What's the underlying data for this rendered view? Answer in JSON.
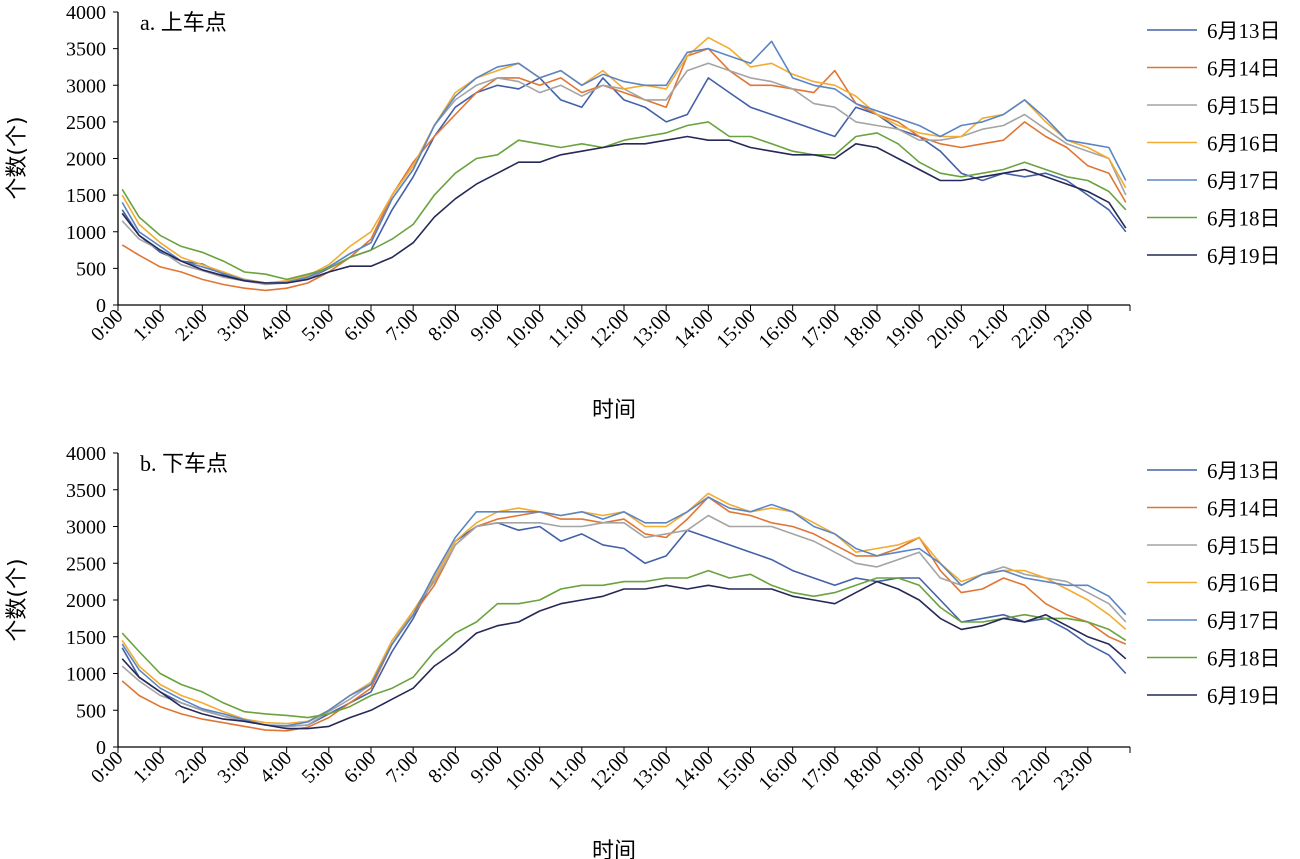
{
  "colors": {
    "6月13日": "#4361a8",
    "6月14日": "#e07634",
    "6月15日": "#a4a4a4",
    "6月16日": "#f2ac32",
    "6月17日": "#5b86c4",
    "6月18日": "#6aa33e",
    "6月19日": "#262957"
  },
  "chart_data": [
    {
      "type": "line",
      "title": "a. 上车点",
      "xlabel": "时间",
      "ylabel": "个数(个)",
      "ylim": [
        0,
        4000
      ],
      "yticks": [
        "0",
        "500",
        "1000",
        "1500",
        "2000",
        "2500",
        "3000",
        "3500",
        "4000"
      ],
      "xticks": [
        "0:00",
        "1:00",
        "2:00",
        "3:00",
        "4:00",
        "5:00",
        "6:00",
        "7:00",
        "8:00",
        "9:00",
        "10:00",
        "11:00",
        "12:00",
        "13:00",
        "14:00",
        "15:00",
        "16:00",
        "17:00",
        "18:00",
        "19:00",
        "20:00",
        "21:00",
        "22:00",
        "23:00"
      ],
      "x_hours": [
        0.1,
        0.5,
        1,
        1.5,
        2,
        2.5,
        3,
        3.5,
        4,
        4.5,
        5,
        5.5,
        6,
        6.5,
        7,
        7.5,
        8,
        8.5,
        9,
        9.5,
        10,
        10.5,
        11,
        11.5,
        12,
        12.5,
        13,
        13.5,
        14,
        14.5,
        15,
        15.5,
        16,
        16.5,
        17,
        17.5,
        18,
        18.5,
        19,
        19.5,
        20,
        20.5,
        21,
        21.5,
        22,
        22.5,
        23,
        23.5,
        23.9
      ],
      "series": [
        {
          "name": "6月13日",
          "values": [
            1300,
            950,
            720,
            600,
            560,
            420,
            350,
            300,
            320,
            360,
            500,
            650,
            750,
            1300,
            1750,
            2300,
            2700,
            2900,
            3000,
            2950,
            3100,
            2800,
            2700,
            3100,
            2800,
            2700,
            2500,
            2600,
            3100,
            2900,
            2700,
            2600,
            2500,
            2400,
            2300,
            2700,
            2600,
            2400,
            2300,
            2100,
            1800,
            1700,
            1800,
            1750,
            1800,
            1700,
            1500,
            1300,
            1000
          ]
        },
        {
          "name": "6月14日",
          "values": [
            820,
            680,
            520,
            450,
            350,
            280,
            230,
            200,
            230,
            300,
            450,
            650,
            900,
            1500,
            1950,
            2300,
            2600,
            2900,
            3100,
            3100,
            3000,
            3100,
            2900,
            3000,
            2900,
            2800,
            2700,
            3400,
            3500,
            3200,
            3000,
            3000,
            2950,
            2900,
            3200,
            2750,
            2600,
            2500,
            2300,
            2200,
            2150,
            2200,
            2250,
            2500,
            2300,
            2150,
            1900,
            1800,
            1400
          ]
        },
        {
          "name": "6月15日",
          "values": [
            1150,
            900,
            750,
            550,
            470,
            380,
            330,
            280,
            300,
            360,
            520,
            700,
            850,
            1450,
            1850,
            2450,
            2800,
            3000,
            3100,
            3050,
            2900,
            3000,
            2850,
            3000,
            2950,
            2800,
            2800,
            3200,
            3300,
            3200,
            3100,
            3050,
            2950,
            2750,
            2700,
            2500,
            2450,
            2400,
            2250,
            2250,
            2300,
            2400,
            2450,
            2600,
            2400,
            2200,
            2100,
            2000,
            1500
          ]
        },
        {
          "name": "6月16日",
          "values": [
            1500,
            1100,
            850,
            650,
            550,
            450,
            350,
            300,
            330,
            400,
            550,
            800,
            1000,
            1500,
            1900,
            2450,
            2900,
            3100,
            3200,
            3300,
            3100,
            3200,
            3000,
            3200,
            2950,
            3000,
            2950,
            3400,
            3650,
            3500,
            3250,
            3300,
            3150,
            3050,
            3000,
            2850,
            2600,
            2450,
            2350,
            2300,
            2300,
            2550,
            2600,
            2800,
            2500,
            2250,
            2150,
            2000,
            1600
          ]
        },
        {
          "name": "6月17日",
          "values": [
            1400,
            1000,
            800,
            600,
            520,
            430,
            340,
            300,
            310,
            380,
            520,
            700,
            850,
            1450,
            1850,
            2450,
            2850,
            3100,
            3250,
            3300,
            3100,
            3200,
            3000,
            3150,
            3050,
            3000,
            3000,
            3450,
            3500,
            3400,
            3300,
            3600,
            3100,
            3000,
            2950,
            2750,
            2650,
            2550,
            2450,
            2300,
            2450,
            2500,
            2600,
            2800,
            2550,
            2250,
            2200,
            2150,
            1700
          ]
        },
        {
          "name": "6月18日",
          "values": [
            1580,
            1200,
            950,
            800,
            720,
            600,
            450,
            420,
            350,
            420,
            500,
            650,
            750,
            900,
            1100,
            1500,
            1800,
            2000,
            2050,
            2250,
            2200,
            2150,
            2200,
            2150,
            2250,
            2300,
            2350,
            2450,
            2500,
            2300,
            2300,
            2200,
            2100,
            2050,
            2050,
            2300,
            2350,
            2200,
            1950,
            1800,
            1750,
            1800,
            1850,
            1950,
            1850,
            1750,
            1700,
            1550,
            1300
          ]
        },
        {
          "name": "6月19日",
          "values": [
            1250,
            950,
            750,
            600,
            480,
            400,
            330,
            300,
            300,
            350,
            450,
            530,
            530,
            650,
            850,
            1200,
            1450,
            1650,
            1800,
            1950,
            1950,
            2050,
            2100,
            2150,
            2200,
            2200,
            2250,
            2300,
            2250,
            2250,
            2150,
            2100,
            2050,
            2050,
            2000,
            2200,
            2150,
            2000,
            1850,
            1700,
            1700,
            1750,
            1800,
            1850,
            1750,
            1650,
            1550,
            1400,
            1050
          ]
        }
      ]
    },
    {
      "type": "line",
      "title": "b. 下车点",
      "xlabel": "时间",
      "ylabel": "个数(个)",
      "ylim": [
        0,
        4000
      ],
      "yticks": [
        "0",
        "500",
        "1000",
        "1500",
        "2000",
        "2500",
        "3000",
        "3500",
        "4000"
      ],
      "xticks": [
        "0:00",
        "1:00",
        "2:00",
        "3:00",
        "4:00",
        "5:00",
        "6:00",
        "7:00",
        "8:00",
        "9:00",
        "10:00",
        "11:00",
        "12:00",
        "13:00",
        "14:00",
        "15:00",
        "16:00",
        "17:00",
        "18:00",
        "19:00",
        "20:00",
        "21:00",
        "22:00",
        "23:00"
      ],
      "x_hours": [
        0.1,
        0.5,
        1,
        1.5,
        2,
        2.5,
        3,
        3.5,
        4,
        4.5,
        5,
        5.5,
        6,
        6.5,
        7,
        7.5,
        8,
        8.5,
        9,
        9.5,
        10,
        10.5,
        11,
        11.5,
        12,
        12.5,
        13,
        13.5,
        14,
        14.5,
        15,
        15.5,
        16,
        16.5,
        17,
        17.5,
        18,
        18.5,
        19,
        19.5,
        20,
        20.5,
        21,
        21.5,
        22,
        22.5,
        23,
        23.5,
        23.9
      ],
      "series": [
        {
          "name": "6月13日",
          "values": [
            1350,
            950,
            750,
            600,
            500,
            420,
            350,
            300,
            280,
            300,
            450,
            600,
            750,
            1300,
            1750,
            2300,
            2800,
            3000,
            3050,
            2950,
            3000,
            2800,
            2900,
            2750,
            2700,
            2500,
            2600,
            2950,
            2850,
            2750,
            2650,
            2550,
            2400,
            2300,
            2200,
            2300,
            2250,
            2300,
            2300,
            2000,
            1700,
            1750,
            1800,
            1700,
            1750,
            1600,
            1400,
            1250,
            1000
          ]
        },
        {
          "name": "6月14日",
          "values": [
            900,
            700,
            550,
            450,
            380,
            330,
            280,
            230,
            220,
            270,
            400,
            600,
            800,
            1400,
            1800,
            2200,
            2750,
            3000,
            3100,
            3150,
            3200,
            3100,
            3100,
            3050,
            3100,
            2900,
            2850,
            3100,
            3400,
            3200,
            3150,
            3050,
            3000,
            2900,
            2750,
            2600,
            2600,
            2700,
            2850,
            2400,
            2100,
            2150,
            2300,
            2200,
            1950,
            1800,
            1700,
            1500,
            1400
          ]
        },
        {
          "name": "6月15日",
          "values": [
            1100,
            900,
            700,
            600,
            500,
            420,
            350,
            300,
            280,
            300,
            480,
            650,
            850,
            1400,
            1850,
            2250,
            2750,
            3000,
            3050,
            3050,
            3050,
            3000,
            3000,
            3050,
            3050,
            2850,
            2900,
            2950,
            3150,
            3000,
            3000,
            3000,
            2900,
            2800,
            2650,
            2500,
            2450,
            2550,
            2650,
            2300,
            2200,
            2350,
            2450,
            2350,
            2300,
            2250,
            2100,
            1950,
            1700
          ]
        },
        {
          "name": "6月16日",
          "values": [
            1450,
            1100,
            850,
            700,
            600,
            480,
            380,
            330,
            320,
            350,
            500,
            700,
            880,
            1450,
            1850,
            2300,
            2800,
            3050,
            3200,
            3250,
            3200,
            3150,
            3200,
            3150,
            3200,
            3000,
            3000,
            3200,
            3450,
            3300,
            3200,
            3250,
            3200,
            3050,
            2900,
            2650,
            2700,
            2750,
            2850,
            2500,
            2250,
            2350,
            2400,
            2400,
            2300,
            2150,
            2000,
            1800,
            1600
          ]
        },
        {
          "name": "6月17日",
          "values": [
            1400,
            1050,
            800,
            650,
            520,
            450,
            370,
            300,
            290,
            340,
            500,
            700,
            850,
            1400,
            1800,
            2350,
            2850,
            3200,
            3200,
            3200,
            3200,
            3150,
            3200,
            3100,
            3200,
            3050,
            3050,
            3200,
            3400,
            3250,
            3200,
            3300,
            3200,
            3000,
            2900,
            2700,
            2600,
            2650,
            2700,
            2500,
            2200,
            2350,
            2400,
            2300,
            2250,
            2200,
            2200,
            2050,
            1800
          ]
        },
        {
          "name": "6月18日",
          "values": [
            1550,
            1300,
            1000,
            850,
            750,
            600,
            480,
            450,
            430,
            400,
            450,
            550,
            700,
            800,
            950,
            1300,
            1550,
            1700,
            1950,
            1950,
            2000,
            2150,
            2200,
            2200,
            2250,
            2250,
            2300,
            2300,
            2400,
            2300,
            2350,
            2200,
            2100,
            2050,
            2100,
            2200,
            2300,
            2300,
            2200,
            1900,
            1700,
            1700,
            1750,
            1800,
            1750,
            1750,
            1700,
            1600,
            1450
          ]
        },
        {
          "name": "6月19日",
          "values": [
            1200,
            950,
            750,
            550,
            450,
            380,
            350,
            300,
            250,
            250,
            280,
            400,
            500,
            650,
            800,
            1100,
            1300,
            1550,
            1650,
            1700,
            1850,
            1950,
            2000,
            2050,
            2150,
            2150,
            2200,
            2150,
            2200,
            2150,
            2150,
            2150,
            2050,
            2000,
            1950,
            2100,
            2250,
            2150,
            2000,
            1750,
            1600,
            1650,
            1750,
            1700,
            1800,
            1650,
            1500,
            1400,
            1200
          ]
        }
      ]
    }
  ]
}
